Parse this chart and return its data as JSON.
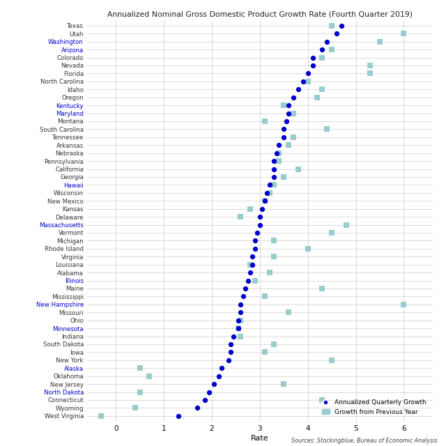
{
  "title": "Annualized Nominal Gross Domestic Product Growth Rate (Fourth Quarter 2019)",
  "xlabel": "Rate",
  "source_text": "Sources: Stockingblue, Bureau of Economic Analysis",
  "legend_dot_label": "Annualized Quarterly Growth",
  "legend_sq_label": "Growth from Previous Year",
  "states": [
    "Texas",
    "Utah",
    "Washington",
    "Arizona",
    "Colorado",
    "Nevada",
    "Florida",
    "North Carolina",
    "Idaho",
    "Oregon",
    "Kentucky",
    "Maryland",
    "Montana",
    "South Carolina",
    "Tennessee",
    "Arkansas",
    "Nebraska",
    "Pennsylvania",
    "California",
    "Georgia",
    "Hawaii",
    "Wisconsin",
    "New Mexico",
    "Kansas",
    "Delaware",
    "Massachusetts",
    "Vermont",
    "Michigan",
    "Rhode Island",
    "Virginia",
    "Louisiana",
    "Alabama",
    "Illinois",
    "Maine",
    "Mississippi",
    "New Hampshire",
    "Missouri",
    "Ohio",
    "Minnesota",
    "Indiana",
    "South Dakota",
    "Iowa",
    "New York",
    "Alaska",
    "Oklahoma",
    "New Jersey",
    "North Dakota",
    "Connecticut",
    "Wyoming",
    "West Virginia"
  ],
  "quarterly_growth": [
    4.7,
    4.6,
    4.4,
    4.3,
    4.1,
    4.1,
    4.0,
    3.9,
    3.8,
    3.7,
    3.6,
    3.6,
    3.55,
    3.5,
    3.5,
    3.4,
    3.35,
    3.3,
    3.3,
    3.3,
    3.2,
    3.15,
    3.1,
    3.05,
    3.0,
    3.0,
    2.95,
    2.9,
    2.9,
    2.85,
    2.85,
    2.8,
    2.75,
    2.7,
    2.65,
    2.6,
    2.6,
    2.55,
    2.55,
    2.45,
    2.4,
    2.4,
    2.35,
    2.2,
    2.15,
    2.05,
    1.95,
    1.85,
    1.7,
    1.3
  ],
  "prev_year_growth": [
    4.5,
    6.0,
    5.5,
    4.5,
    4.3,
    5.3,
    5.3,
    4.0,
    4.3,
    4.2,
    3.5,
    3.7,
    3.1,
    4.4,
    3.7,
    3.6,
    3.4,
    3.4,
    3.8,
    3.5,
    3.3,
    3.2,
    3.1,
    2.8,
    2.6,
    4.8,
    4.5,
    3.3,
    4.0,
    3.3,
    2.8,
    3.2,
    2.9,
    4.3,
    3.1,
    6.0,
    3.6,
    2.6,
    2.55,
    2.6,
    3.3,
    3.1,
    4.5,
    0.5,
    0.7,
    3.5,
    0.5,
    4.3,
    0.4,
    -0.3
  ],
  "dot_color": "#0000CC",
  "square_color": "#99CCCC",
  "background_color": "#FFFFFF",
  "grid_color": "#CCCCCC",
  "xlim": [
    -0.6,
    6.6
  ],
  "xticks": [
    0,
    1,
    2,
    3,
    4,
    5,
    6
  ],
  "title_fontsize": 8.0,
  "state_colors": {
    "Texas": "#333333",
    "Utah": "#333333",
    "Washington": "#0000CC",
    "Arizona": "#0000CC",
    "Colorado": "#333333",
    "Nevada": "#333333",
    "Florida": "#333333",
    "North Carolina": "#333333",
    "Idaho": "#333333",
    "Oregon": "#333333",
    "Kentucky": "#0000CC",
    "Maryland": "#0000CC",
    "Montana": "#333333",
    "South Carolina": "#333333",
    "Tennessee": "#333333",
    "Arkansas": "#333333",
    "Nebraska": "#333333",
    "Pennsylvania": "#333333",
    "California": "#333333",
    "Georgia": "#333333",
    "Hawaii": "#0000CC",
    "Wisconsin": "#333333",
    "New Mexico": "#333333",
    "Kansas": "#333333",
    "Delaware": "#333333",
    "Massachusetts": "#0000CC",
    "Vermont": "#333333",
    "Michigan": "#333333",
    "Rhode Island": "#333333",
    "Virginia": "#333333",
    "Louisiana": "#333333",
    "Alabama": "#333333",
    "Illinois": "#0000CC",
    "Maine": "#333333",
    "Mississippi": "#333333",
    "New Hampshire": "#0000CC",
    "Missouri": "#333333",
    "Ohio": "#333333",
    "Minnesota": "#0000CC",
    "Indiana": "#333333",
    "South Dakota": "#333333",
    "Iowa": "#333333",
    "New York": "#333333",
    "Alaska": "#0000CC",
    "Oklahoma": "#333333",
    "New Jersey": "#333333",
    "North Dakota": "#0000CC",
    "Connecticut": "#333333",
    "Wyoming": "#333333",
    "West Virginia": "#333333"
  }
}
